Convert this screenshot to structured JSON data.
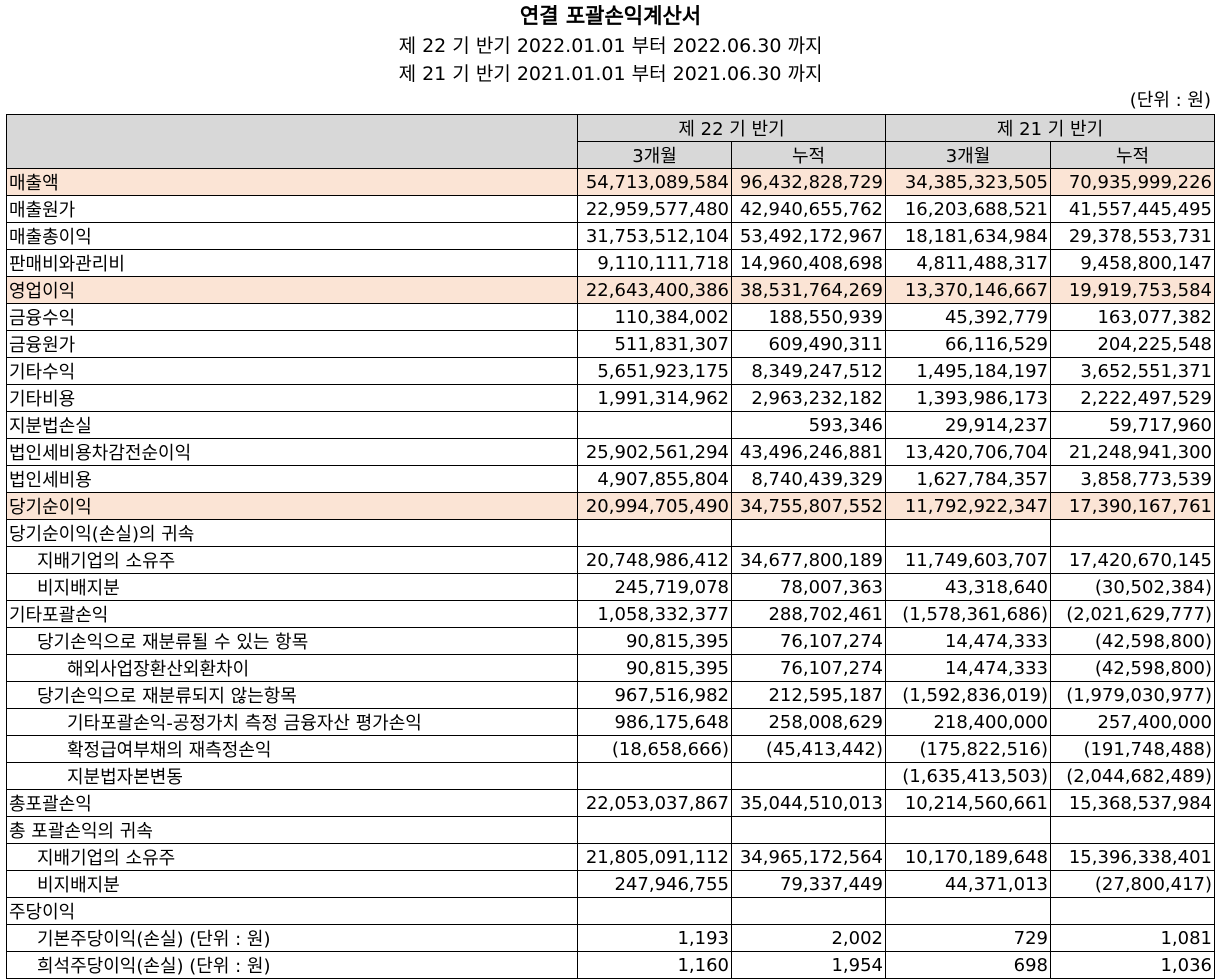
{
  "header": {
    "title": "연결 포괄손익계산서",
    "period_current": "제 22 기 반기 2022.01.01 부터 2022.06.30 까지",
    "period_prior": "제 21 기 반기 2021.01.01 부터 2021.06.30 까지",
    "unit": "(단위 : 원)"
  },
  "columns": {
    "current": "제 22 기 반기",
    "prior": "제 21 기 반기",
    "three_month": "3개월",
    "cumulative": "누적"
  },
  "rows": [
    {
      "label": "매출액",
      "indent": 0,
      "highlight": true,
      "v": [
        "54,713,089,584",
        "96,432,828,729",
        "34,385,323,505",
        "70,935,999,226"
      ]
    },
    {
      "label": "매출원가",
      "indent": 0,
      "highlight": false,
      "v": [
        "22,959,577,480",
        "42,940,655,762",
        "16,203,688,521",
        "41,557,445,495"
      ]
    },
    {
      "label": "매출총이익",
      "indent": 0,
      "highlight": false,
      "v": [
        "31,753,512,104",
        "53,492,172,967",
        "18,181,634,984",
        "29,378,553,731"
      ]
    },
    {
      "label": "판매비와관리비",
      "indent": 0,
      "highlight": false,
      "v": [
        "9,110,111,718",
        "14,960,408,698",
        "4,811,488,317",
        "9,458,800,147"
      ]
    },
    {
      "label": "영업이익",
      "indent": 0,
      "highlight": true,
      "v": [
        "22,643,400,386",
        "38,531,764,269",
        "13,370,146,667",
        "19,919,753,584"
      ]
    },
    {
      "label": "금융수익",
      "indent": 0,
      "highlight": false,
      "v": [
        "110,384,002",
        "188,550,939",
        "45,392,779",
        "163,077,382"
      ]
    },
    {
      "label": "금융원가",
      "indent": 0,
      "highlight": false,
      "v": [
        "511,831,307",
        "609,490,311",
        "66,116,529",
        "204,225,548"
      ]
    },
    {
      "label": "기타수익",
      "indent": 0,
      "highlight": false,
      "v": [
        "5,651,923,175",
        "8,349,247,512",
        "1,495,184,197",
        "3,652,551,371"
      ]
    },
    {
      "label": "기타비용",
      "indent": 0,
      "highlight": false,
      "v": [
        "1,991,314,962",
        "2,963,232,182",
        "1,393,986,173",
        "2,222,497,529"
      ]
    },
    {
      "label": "지분법손실",
      "indent": 0,
      "highlight": false,
      "v": [
        "",
        "593,346",
        "29,914,237",
        "59,717,960"
      ]
    },
    {
      "label": "법인세비용차감전순이익",
      "indent": 0,
      "highlight": false,
      "v": [
        "25,902,561,294",
        "43,496,246,881",
        "13,420,706,704",
        "21,248,941,300"
      ]
    },
    {
      "label": "법인세비용",
      "indent": 0,
      "highlight": false,
      "v": [
        "4,907,855,804",
        "8,740,439,329",
        "1,627,784,357",
        "3,858,773,539"
      ]
    },
    {
      "label": "당기순이익",
      "indent": 0,
      "highlight": true,
      "v": [
        "20,994,705,490",
        "34,755,807,552",
        "11,792,922,347",
        "17,390,167,761"
      ]
    },
    {
      "label": "당기순이익(손실)의 귀속",
      "indent": 0,
      "highlight": false,
      "v": [
        "",
        "",
        "",
        ""
      ]
    },
    {
      "label": "지배기업의 소유주",
      "indent": 1,
      "highlight": false,
      "v": [
        "20,748,986,412",
        "34,677,800,189",
        "11,749,603,707",
        "17,420,670,145"
      ]
    },
    {
      "label": "비지배지분",
      "indent": 1,
      "highlight": false,
      "v": [
        "245,719,078",
        "78,007,363",
        "43,318,640",
        "(30,502,384)"
      ]
    },
    {
      "label": "기타포괄손익",
      "indent": 0,
      "highlight": false,
      "v": [
        "1,058,332,377",
        "288,702,461",
        "(1,578,361,686)",
        "(2,021,629,777)"
      ]
    },
    {
      "label": "당기손익으로 재분류될 수 있는 항목",
      "indent": 1,
      "highlight": false,
      "v": [
        "90,815,395",
        "76,107,274",
        "14,474,333",
        "(42,598,800)"
      ]
    },
    {
      "label": "해외사업장환산외환차이",
      "indent": 2,
      "highlight": false,
      "v": [
        "90,815,395",
        "76,107,274",
        "14,474,333",
        "(42,598,800)"
      ]
    },
    {
      "label": "당기손익으로 재분류되지 않는항목",
      "indent": 1,
      "highlight": false,
      "v": [
        "967,516,982",
        "212,595,187",
        "(1,592,836,019)",
        "(1,979,030,977)"
      ]
    },
    {
      "label": "기타포괄손익-공정가치 측정 금융자산 평가손익",
      "indent": 2,
      "highlight": false,
      "v": [
        "986,175,648",
        "258,008,629",
        "218,400,000",
        "257,400,000"
      ]
    },
    {
      "label": "확정급여부채의 재측정손익",
      "indent": 2,
      "highlight": false,
      "v": [
        "(18,658,666)",
        "(45,413,442)",
        "(175,822,516)",
        "(191,748,488)"
      ]
    },
    {
      "label": "지분법자본변동",
      "indent": 2,
      "highlight": false,
      "v": [
        "",
        "",
        "(1,635,413,503)",
        "(2,044,682,489)"
      ]
    },
    {
      "label": "총포괄손익",
      "indent": 0,
      "highlight": false,
      "v": [
        "22,053,037,867",
        "35,044,510,013",
        "10,214,560,661",
        "15,368,537,984"
      ]
    },
    {
      "label": "총 포괄손익의 귀속",
      "indent": 0,
      "highlight": false,
      "v": [
        "",
        "",
        "",
        ""
      ]
    },
    {
      "label": "지배기업의 소유주",
      "indent": 1,
      "highlight": false,
      "v": [
        "21,805,091,112",
        "34,965,172,564",
        "10,170,189,648",
        "15,396,338,401"
      ]
    },
    {
      "label": "비지배지분",
      "indent": 1,
      "highlight": false,
      "v": [
        "247,946,755",
        "79,337,449",
        "44,371,013",
        "(27,800,417)"
      ]
    },
    {
      "label": "주당이익",
      "indent": 0,
      "highlight": false,
      "v": [
        "",
        "",
        "",
        ""
      ]
    },
    {
      "label": "기본주당이익(손실) (단위 : 원)",
      "indent": 1,
      "highlight": false,
      "v": [
        "1,193",
        "2,002",
        "729",
        "1,081"
      ]
    },
    {
      "label": "희석주당이익(손실) (단위 : 원)",
      "indent": 1,
      "highlight": false,
      "v": [
        "1,160",
        "1,954",
        "698",
        "1,036"
      ]
    }
  ]
}
